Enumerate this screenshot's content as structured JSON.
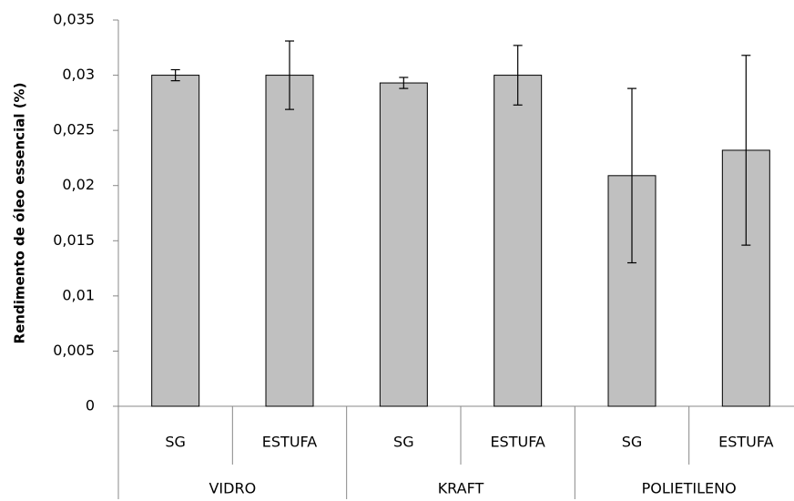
{
  "chart_data": {
    "type": "bar",
    "y_label": "Rendimento de óleo essencial (%)",
    "categories": [
      "SG",
      "ESTUFA",
      "SG",
      "ESTUFA",
      "SG",
      "ESTUFA"
    ],
    "groups": [
      "VIDRO",
      "KRAFT",
      "POLIETILENO"
    ],
    "values": [
      0.03,
      0.03,
      0.0293,
      0.03,
      0.0209,
      0.0232
    ],
    "errors": [
      0.0005,
      0.0031,
      0.0005,
      0.0027,
      0.0079,
      0.0086
    ],
    "color": "#c0c0c0",
    "ylim": [
      0,
      0.035
    ],
    "yticks": [
      0,
      {
        "value": 0.005,
        "label": "0,005"
      },
      {
        "value": 0.01,
        "label": "0,01"
      },
      {
        "value": 0.015,
        "label": "0,015"
      },
      {
        "value": 0.02,
        "label": "0,02"
      },
      {
        "value": 0.025,
        "label": "0,025"
      },
      {
        "value": 0.03,
        "label": "0,03"
      },
      {
        "value": 0.035,
        "label": "0,035"
      }
    ],
    "grid": false
  }
}
